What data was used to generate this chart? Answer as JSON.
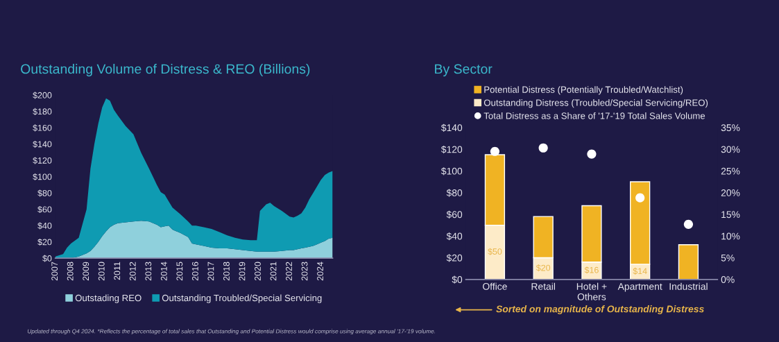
{
  "chart_data": [
    {
      "type": "area",
      "stacked": true,
      "title": "Outstanding Volume of Distress & REO (Billions)",
      "x": [
        2007,
        2007.5,
        2007.75,
        2008,
        2008.5,
        2009,
        2009.25,
        2009.5,
        2009.75,
        2010,
        2010.25,
        2010.5,
        2010.75,
        2011,
        2011.5,
        2012,
        2012.5,
        2013,
        2013.5,
        2013.75,
        2014,
        2014.25,
        2014.5,
        2015,
        2015.5,
        2015.75,
        2016,
        2016.5,
        2017,
        2017.5,
        2018,
        2018.5,
        2019,
        2019.5,
        2019.9,
        2020.1,
        2020.5,
        2020.75,
        2021,
        2021.5,
        2022,
        2022.25,
        2022.5,
        2022.75,
        2023,
        2023.25,
        2023.5,
        2023.75,
        2024,
        2024.25,
        2024.5,
        2024.75
      ],
      "series": [
        {
          "name": "Outstading REO",
          "color": "#8fd0dc",
          "values": [
            0,
            0,
            0,
            0,
            2,
            6,
            9,
            14,
            20,
            27,
            33,
            38,
            41,
            43,
            44,
            45,
            46,
            45,
            41,
            38,
            39,
            40,
            35,
            31,
            26,
            18,
            17,
            15,
            13,
            12,
            12,
            11,
            10,
            9,
            8,
            8,
            8,
            8,
            8,
            9,
            10,
            10,
            11,
            12,
            13,
            14,
            15,
            17,
            19,
            21,
            24,
            25
          ]
        },
        {
          "name": "Outstanding Troubled/Special Servicing",
          "color": "#0f9bb2",
          "values": [
            2,
            5,
            13,
            18,
            23,
            54,
            101,
            126,
            145,
            158,
            163,
            155,
            141,
            132,
            118,
            107,
            83,
            65,
            49,
            43,
            39,
            30,
            27,
            23,
            19,
            22,
            23,
            23,
            23,
            20,
            16,
            14,
            13,
            13,
            14,
            50,
            58,
            60,
            56,
            49,
            41,
            40,
            41,
            43,
            49,
            58,
            65,
            71,
            77,
            81,
            81,
            82
          ]
        }
      ],
      "xlim": [
        2007,
        2024.75
      ],
      "xticks": [
        2007,
        2008,
        2009,
        2010,
        2011,
        2012,
        2013,
        2014,
        2015,
        2016,
        2017,
        2018,
        2019,
        2020,
        2021,
        2022,
        2023,
        2024
      ],
      "ylim": [
        0,
        200
      ],
      "yticks": [
        {
          "value": 0,
          "label": "$0"
        },
        {
          "value": 20,
          "label": "$20"
        },
        {
          "value": 40,
          "label": "$40"
        },
        {
          "value": 60,
          "label": "$60"
        },
        {
          "value": 80,
          "label": "$80"
        },
        {
          "value": 100,
          "label": "$100"
        },
        {
          "value": 120,
          "label": "$120"
        },
        {
          "value": 140,
          "label": "$140"
        },
        {
          "value": 160,
          "label": "$160"
        },
        {
          "value": 180,
          "label": "$180"
        },
        {
          "value": 200,
          "label": "$200"
        }
      ],
      "legend": "bottom",
      "grid": false,
      "annotations": [
        "Updated through Q4 2024. *Reflects the percentage of total sales that Outstanding and Potential Distress would comprise using average annual '17-'19 volume."
      ]
    },
    {
      "type": "bar",
      "stacked": true,
      "title": "By Sector",
      "categories": [
        "Office",
        "Retail",
        "Hotel +\nOthers",
        "Apartment",
        "Industrial"
      ],
      "series": [
        {
          "name": "Outstanding Distress (Troubled/Special Servicing/REO)",
          "color": "#fdebc8",
          "values": [
            50,
            20,
            16,
            14,
            null
          ],
          "value_labels": [
            "$50",
            "$20",
            "$16",
            "$14",
            null
          ]
        },
        {
          "name": "Potential Distress (Potentially Troubled/Watchlist)",
          "color": "#f0b323",
          "values": [
            65,
            38,
            52,
            76,
            32
          ]
        },
        {
          "name": "Total Distress as a Share of '17-'19 Total Sales Volume",
          "type": "scatter",
          "axis": "y2",
          "marker": "circle",
          "color": "#ffffff",
          "x": [
            "Office",
            "Retail",
            "Hotel +\nOthers",
            "Apartment",
            "Industrial"
          ],
          "values": [
            29.5,
            30.3,
            28.9,
            18.8,
            12.7
          ]
        }
      ],
      "ylim": [
        0,
        140
      ],
      "yticks": [
        {
          "value": 0,
          "label": "$0"
        },
        {
          "value": 20,
          "label": "$20"
        },
        {
          "value": 40,
          "label": "$40"
        },
        {
          "value": 60,
          "label": "$60"
        },
        {
          "value": 80,
          "label": "$80"
        },
        {
          "value": 100,
          "label": "$100"
        },
        {
          "value": 120,
          "label": "$120"
        },
        {
          "value": 140,
          "label": "$140"
        }
      ],
      "y2lim": [
        0,
        35
      ],
      "y2ticks": [
        {
          "value": 0,
          "label": "0%"
        },
        {
          "value": 5,
          "label": "5%"
        },
        {
          "value": 10,
          "label": "10%"
        },
        {
          "value": 15,
          "label": "15%"
        },
        {
          "value": 20,
          "label": "20%"
        },
        {
          "value": 25,
          "label": "25%"
        },
        {
          "value": 30,
          "label": "30%"
        },
        {
          "value": 35,
          "label": "35%"
        }
      ],
      "legend": "top",
      "grid": false,
      "annotations": [
        "Sorted on magnitude of Outstanding Distress"
      ]
    }
  ]
}
